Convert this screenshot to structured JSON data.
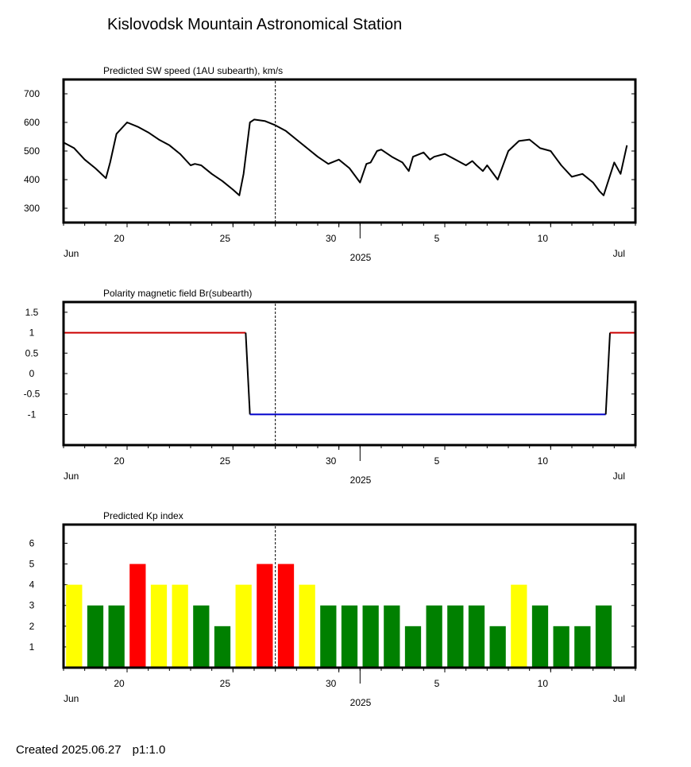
{
  "title": "Kislovodsk Mountain Astronomical Station",
  "footer": {
    "created": "Created  2025.06.27",
    "page": "p1:1.0"
  },
  "time_axis": {
    "month_left": "Jun",
    "month_right": "Jul",
    "year": "2025",
    "day_ticks": [
      "20",
      "25",
      "30",
      "5",
      "10"
    ]
  },
  "chart_data": [
    {
      "type": "line",
      "title": "Predicted SW speed (1AU subearth), km/s",
      "ylim": [
        250,
        750
      ],
      "yticks": [
        "300",
        "400",
        "500",
        "600",
        "700"
      ],
      "xlim": [
        "2025-06-17",
        "2025-07-14"
      ],
      "current_date": "2025-06-27",
      "color": "#000000",
      "x": [
        "2025-06-17",
        "2025-06-17.5",
        "2025-06-18",
        "2025-06-18.5",
        "2025-06-19",
        "2025-06-19.2",
        "2025-06-19.5",
        "2025-06-20",
        "2025-06-20.5",
        "2025-06-21",
        "2025-06-21.5",
        "2025-06-22",
        "2025-06-22.5",
        "2025-06-23",
        "2025-06-23.2",
        "2025-06-23.5",
        "2025-06-24",
        "2025-06-24.5",
        "2025-06-25",
        "2025-06-25.3",
        "2025-06-25.5",
        "2025-06-25.8",
        "2025-06-26",
        "2025-06-26.5",
        "2025-06-27",
        "2025-06-27.5",
        "2025-06-28",
        "2025-06-28.5",
        "2025-06-29",
        "2025-06-29.5",
        "2025-06-30",
        "2025-06-30.5",
        "2025-07-01",
        "2025-07-01.3",
        "2025-07-01.5",
        "2025-07-01.8",
        "2025-07-02",
        "2025-07-02.5",
        "2025-07-03",
        "2025-07-03.3",
        "2025-07-03.5",
        "2025-07-04",
        "2025-07-04.3",
        "2025-07-04.5",
        "2025-07-05",
        "2025-07-05.5",
        "2025-07-06",
        "2025-07-06.3",
        "2025-07-06.5",
        "2025-07-06.8",
        "2025-07-07",
        "2025-07-07.5",
        "2025-07-08",
        "2025-07-08.5",
        "2025-07-09",
        "2025-07-09.5",
        "2025-07-10",
        "2025-07-10.3",
        "2025-07-10.5",
        "2025-07-11",
        "2025-07-11.5",
        "2025-07-12",
        "2025-07-12.3",
        "2025-07-12.5",
        "2025-07-13",
        "2025-07-13.3",
        "2025-07-13.6"
      ],
      "values": [
        530,
        510,
        470,
        440,
        405,
        460,
        560,
        600,
        585,
        565,
        540,
        520,
        490,
        450,
        455,
        450,
        420,
        395,
        365,
        345,
        420,
        600,
        610,
        605,
        590,
        570,
        540,
        510,
        480,
        455,
        470,
        440,
        390,
        455,
        460,
        500,
        505,
        480,
        460,
        430,
        480,
        495,
        470,
        480,
        490,
        470,
        450,
        465,
        450,
        430,
        450,
        400,
        500,
        535,
        540,
        510,
        500,
        470,
        450,
        410,
        420,
        390,
        360,
        345,
        460,
        420,
        520
      ]
    },
    {
      "type": "line",
      "title": "Polarity magnetic field  Br(subearth)",
      "ylim": [
        -1.75,
        1.75
      ],
      "yticks": [
        "1.5",
        "1",
        "0.5",
        "0",
        "-0.5",
        "-1"
      ],
      "xlim": [
        "2025-06-17",
        "2025-07-14"
      ],
      "current_date": "2025-06-27",
      "segments": [
        {
          "x": [
            "2025-06-17",
            "2025-06-25.6"
          ],
          "values": [
            1,
            1
          ],
          "color": "#cc0000"
        },
        {
          "x": [
            "2025-06-25.6",
            "2025-06-25.8"
          ],
          "values": [
            1,
            -1
          ],
          "color": "#000000"
        },
        {
          "x": [
            "2025-06-25.8",
            "2025-07-12.6"
          ],
          "values": [
            -1,
            -1
          ],
          "color": "#0000cc"
        },
        {
          "x": [
            "2025-07-12.6",
            "2025-07-12.8"
          ],
          "values": [
            -1,
            1
          ],
          "color": "#000000"
        },
        {
          "x": [
            "2025-07-12.8",
            "2025-07-14"
          ],
          "values": [
            1,
            1
          ],
          "color": "#cc0000"
        }
      ]
    },
    {
      "type": "bar",
      "title": "Predicted Kp index",
      "ylim": [
        0,
        6.9
      ],
      "yticks": [
        "1",
        "2",
        "3",
        "4",
        "5",
        "6"
      ],
      "xlim": [
        "2025-06-17",
        "2025-07-14"
      ],
      "current_date": "2025-06-27",
      "categories": [
        "2025-06-17",
        "2025-06-18",
        "2025-06-19",
        "2025-06-20",
        "2025-06-21",
        "2025-06-22",
        "2025-06-23",
        "2025-06-24",
        "2025-06-25",
        "2025-06-26",
        "2025-06-27",
        "2025-06-28",
        "2025-06-29",
        "2025-06-30",
        "2025-07-01",
        "2025-07-02",
        "2025-07-03",
        "2025-07-04",
        "2025-07-05",
        "2025-07-06",
        "2025-07-07",
        "2025-07-08",
        "2025-07-09",
        "2025-07-10",
        "2025-07-11",
        "2025-07-12"
      ],
      "values": [
        4,
        3,
        3,
        5,
        4,
        4,
        3,
        2,
        4,
        5,
        5,
        4,
        3,
        3,
        3,
        3,
        2,
        3,
        3,
        3,
        2,
        4,
        3,
        2,
        2,
        3
      ],
      "colors": {
        "low": "#008000",
        "moderate": "#ffff00",
        "high": "#ff0000"
      }
    }
  ]
}
